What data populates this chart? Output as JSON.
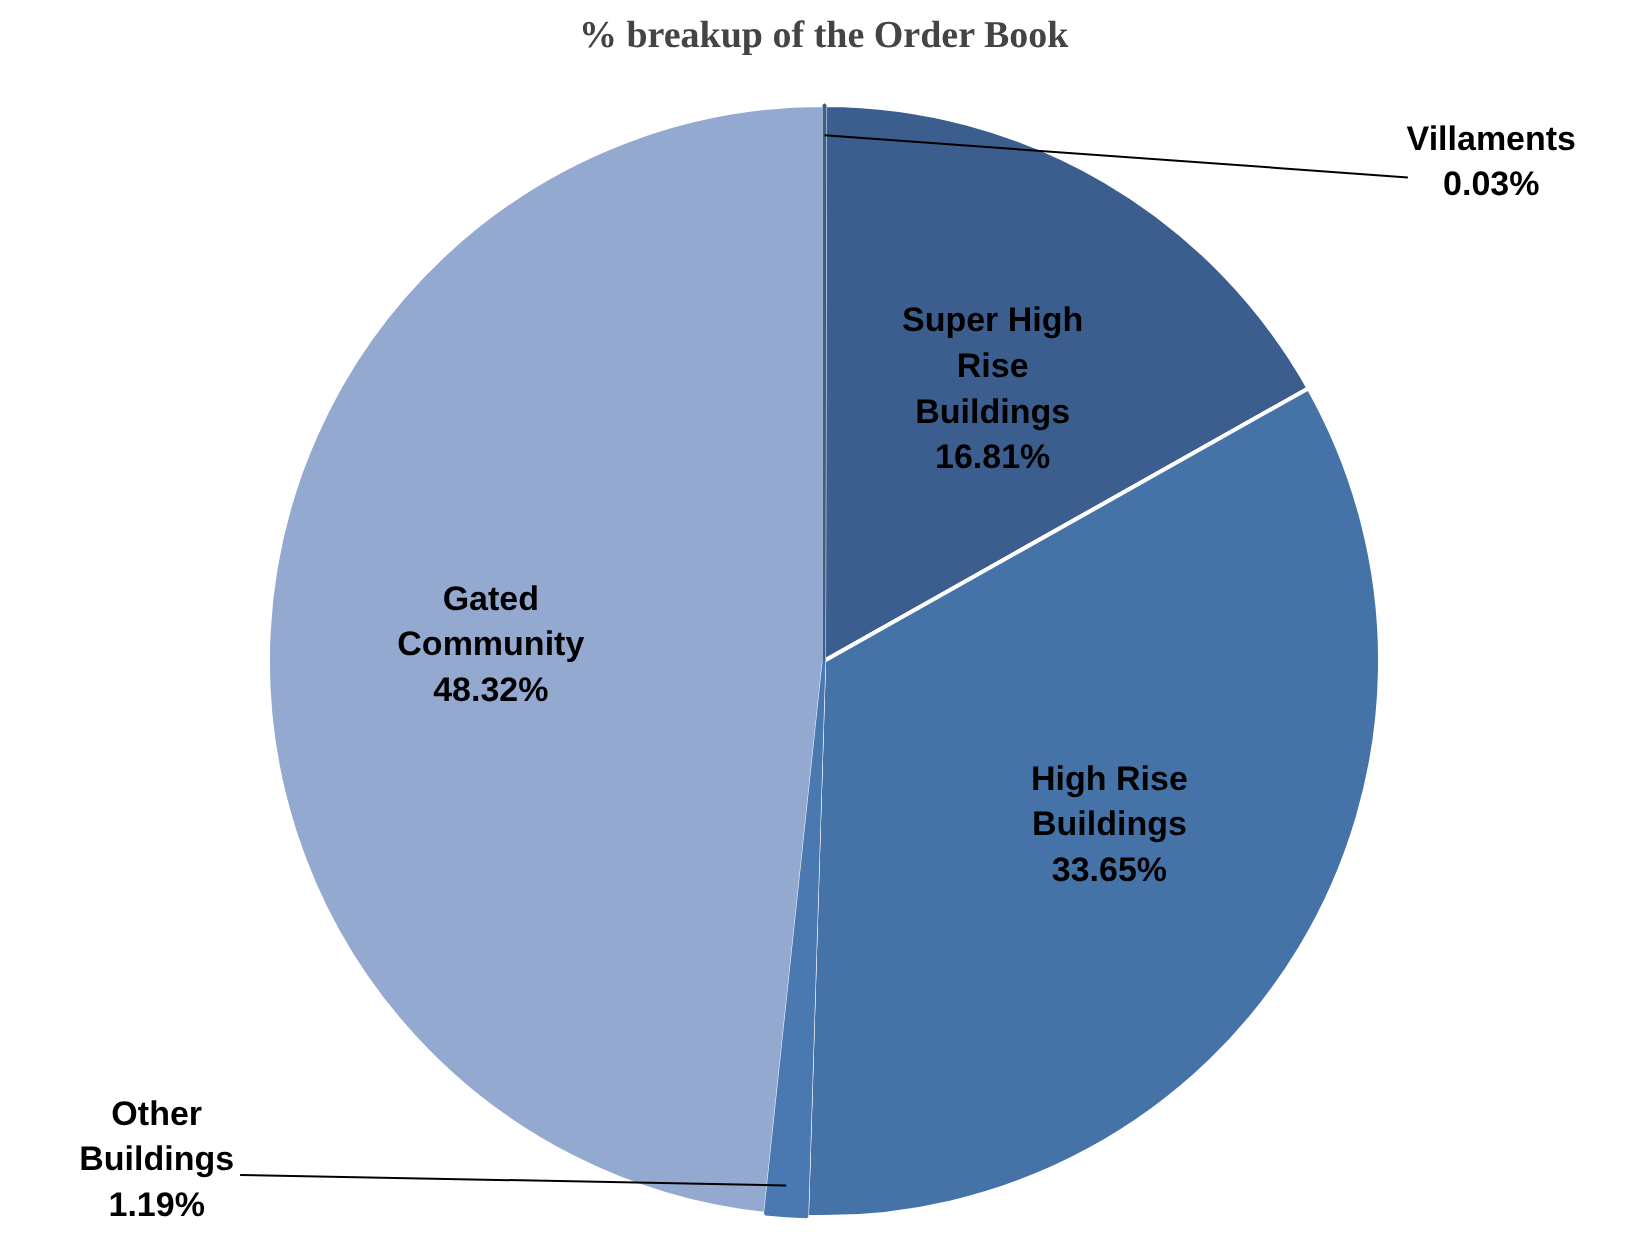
{
  "chart_data": {
    "type": "pie",
    "title": "% breakup of the Order Book",
    "categories": [
      "Villaments",
      "Super High Rise Buildings",
      "High Rise Buildings",
      "Other Buildings",
      "Gated Community"
    ],
    "values": [
      0.03,
      16.81,
      33.65,
      1.19,
      48.32
    ],
    "value_labels": [
      "0.03%",
      "16.81%",
      "33.65%",
      "1.19%",
      "48.32%"
    ],
    "colors": [
      "#3a5f8f",
      "#3b5e8e",
      "#4573a8",
      "#4a78b0",
      "#93a9d0"
    ]
  }
}
